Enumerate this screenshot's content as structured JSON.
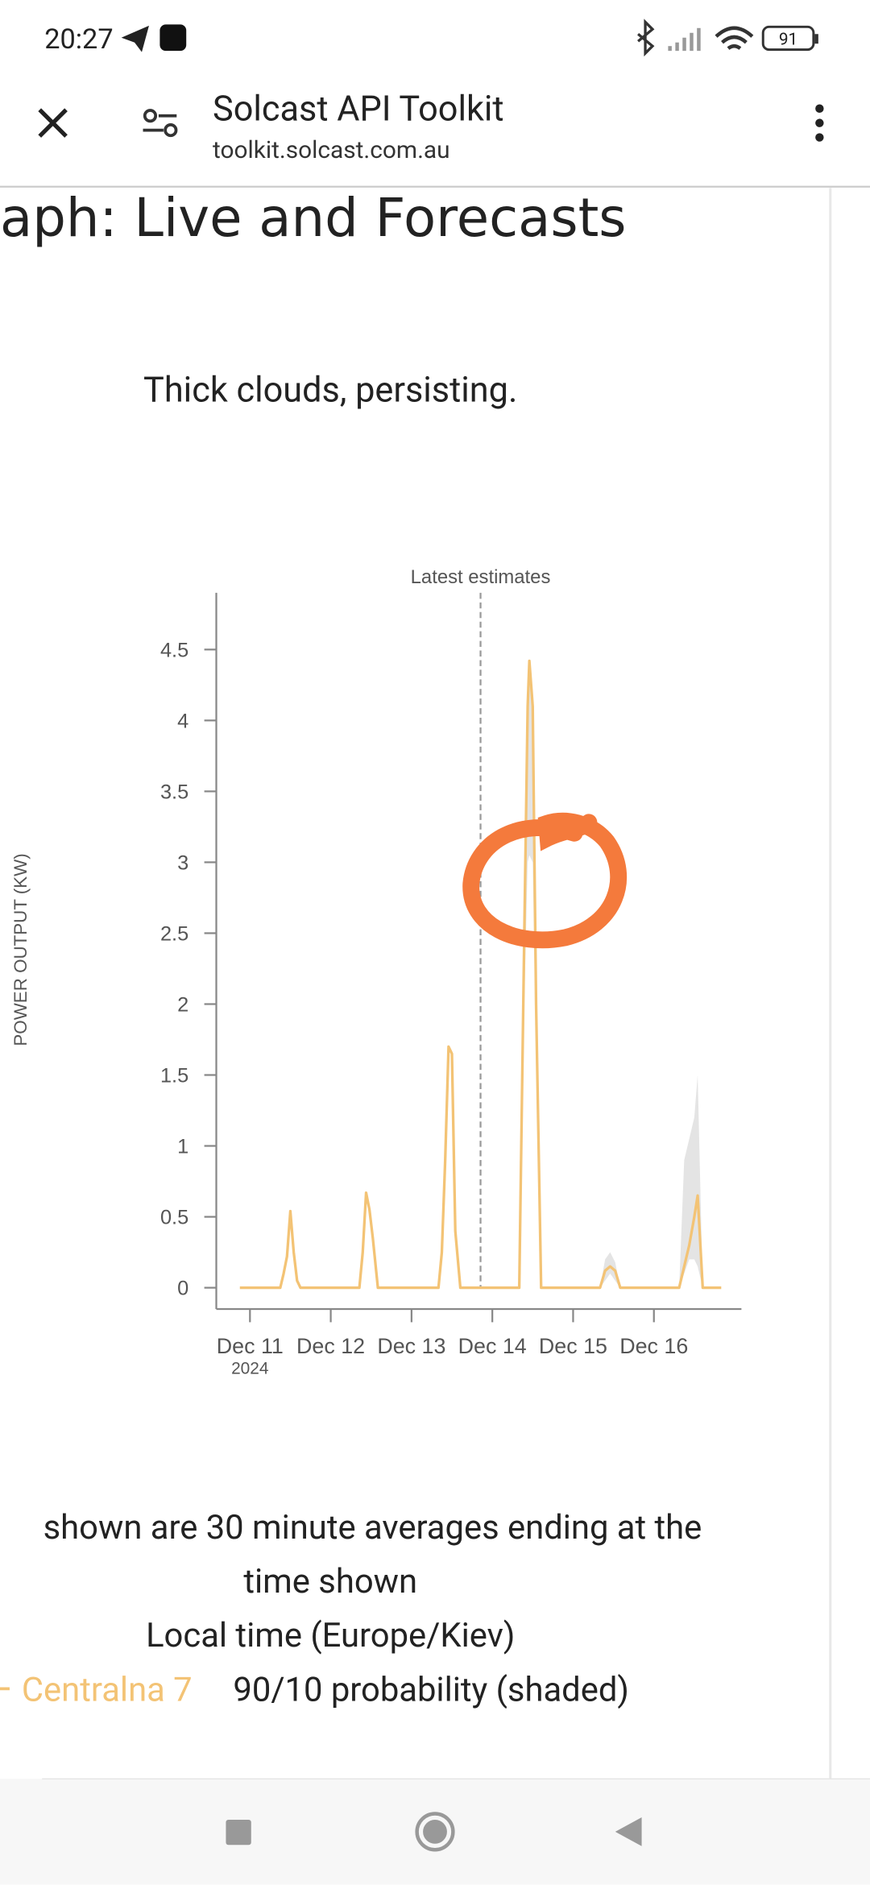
{
  "status_bar": {
    "time": "20:27",
    "battery": "91"
  },
  "browser": {
    "title": "Solcast API Toolkit",
    "url": "toolkit.solcast.com.au"
  },
  "page": {
    "heading": "aph: Live and Forecasts",
    "summary": "Thick clouds, persisting.",
    "notes": [
      "shown are 30 minute averages ending at the",
      "time shown",
      "Local time (Europe/Kiev)"
    ]
  },
  "chart_data": {
    "type": "line",
    "y_label": "POWER OUTPUT (KW)",
    "x": [
      "2024-12-10T21:00",
      "2024-12-11T09:00",
      "2024-12-11T10:00",
      "2024-12-11T11:00",
      "2024-12-11T12:00",
      "2024-12-11T13:00",
      "2024-12-11T14:00",
      "2024-12-11T15:00",
      "2024-12-12T08:30",
      "2024-12-12T09:30",
      "2024-12-12T10:30",
      "2024-12-12T11:30",
      "2024-12-12T12:30",
      "2024-12-12T14:00",
      "2024-12-13T08:00",
      "2024-12-13T09:00",
      "2024-12-13T10:00",
      "2024-12-13T11:00",
      "2024-12-13T12:00",
      "2024-12-13T13:00",
      "2024-12-13T14:30",
      "2024-12-14T08:00",
      "2024-12-14T09:30",
      "2024-12-14T10:30",
      "2024-12-14T11:00",
      "2024-12-14T12:00",
      "2024-12-14T13:00",
      "2024-12-14T14:30",
      "2024-12-15T08:00",
      "2024-12-15T09:30",
      "2024-12-15T11:00",
      "2024-12-15T12:30",
      "2024-12-15T14:00",
      "2024-12-16T07:30",
      "2024-12-16T09:00",
      "2024-12-16T10:30",
      "2024-12-16T12:00",
      "2024-12-16T13:00",
      "2024-12-16T14:30",
      "2024-12-16T20:00"
    ],
    "series": [
      {
        "name": "Centralna 7",
        "color": "#f3c375",
        "values": [
          0,
          0,
          0.1,
          0.22,
          0.54,
          0.25,
          0.05,
          0,
          0,
          0.25,
          0.67,
          0.55,
          0.35,
          0,
          0,
          0.25,
          0.9,
          1.7,
          1.65,
          0.4,
          0,
          0,
          2.5,
          4.1,
          4.42,
          4.1,
          2.0,
          0,
          0,
          0.12,
          0.15,
          0.12,
          0,
          0,
          0.15,
          0.3,
          0.5,
          0.65,
          0,
          0
        ]
      }
    ],
    "band": {
      "name": "90/10 probability (shaded)",
      "color": "#e4e4e4",
      "lower": [
        0,
        0,
        0.1,
        0.22,
        0.54,
        0.25,
        0.05,
        0,
        0,
        0.25,
        0.67,
        0.55,
        0.35,
        0,
        0,
        0.25,
        0.9,
        1.7,
        1.65,
        0.4,
        0,
        0,
        2.0,
        3.0,
        3.05,
        3.0,
        1.6,
        0,
        0,
        0.05,
        0.1,
        0.05,
        0,
        0,
        0.1,
        0.2,
        0.2,
        0.15,
        0,
        0
      ],
      "upper": [
        0,
        0,
        0.1,
        0.22,
        0.54,
        0.25,
        0.05,
        0,
        0,
        0.25,
        0.67,
        0.55,
        0.35,
        0,
        0,
        0.25,
        0.9,
        1.7,
        1.65,
        0.4,
        0,
        0,
        2.5,
        4.1,
        4.42,
        4.1,
        2.0,
        0,
        0,
        0.2,
        0.25,
        0.18,
        0,
        0,
        0.9,
        1.05,
        1.2,
        1.5,
        0,
        0
      ]
    },
    "xlim": [
      "2024-12-10T14:00",
      "2024-12-17T02:00"
    ],
    "xticks": [
      {
        "value": "2024-12-11T00:00",
        "label": "Dec 11"
      },
      {
        "value": "2024-12-12T00:00",
        "label": "Dec 12"
      },
      {
        "value": "2024-12-13T00:00",
        "label": "Dec 13"
      },
      {
        "value": "2024-12-14T00:00",
        "label": "Dec 14"
      },
      {
        "value": "2024-12-15T00:00",
        "label": "Dec 15"
      },
      {
        "value": "2024-12-16T00:00",
        "label": "Dec 16"
      }
    ],
    "year_label": "2024",
    "ylim": [
      -0.15,
      4.9
    ],
    "yticks": [
      0,
      0.5,
      1,
      1.5,
      2,
      2.5,
      3,
      3.5,
      4,
      4.5
    ],
    "annotation": {
      "x": "2024-12-13T20:30",
      "text": "Latest estimates"
    }
  }
}
